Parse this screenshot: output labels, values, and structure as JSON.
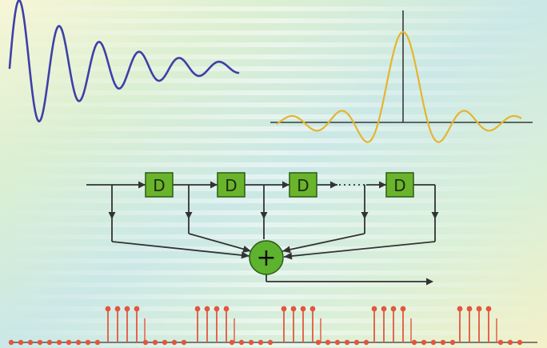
{
  "colors": {
    "damped_wave": "#3f3fa8",
    "sinc_curve": "#e5b52e",
    "axes": "#3a3a3a",
    "delay_box_fill": "#6ab42c",
    "delay_box_stroke": "#2d5a12",
    "summer_fill": "#5db22e",
    "signal_lines": "#333333",
    "pulse_stems": "#e2563e",
    "pulse_baseline": "#555555"
  },
  "diagram": {
    "delay_blocks": [
      {
        "label": "D"
      },
      {
        "label": "D"
      },
      {
        "label": "D"
      },
      {
        "label": "D"
      }
    ],
    "summer_symbol": "+",
    "pulse_pattern": {
      "groups": 5,
      "tall_per_group": 4
    }
  }
}
